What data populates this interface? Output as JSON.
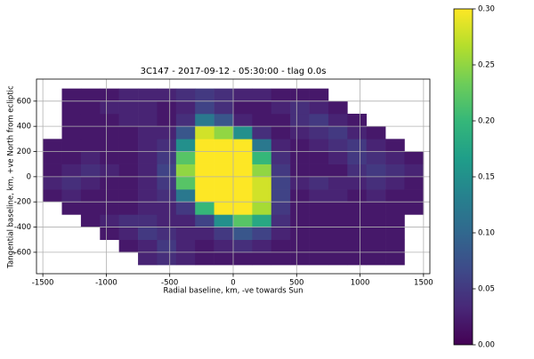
{
  "chart_data": {
    "type": "heatmap",
    "title": "3C147 - 2017-09-12 - 05:30:00 - tlag 0.0s",
    "xlabel": "Radial baseline, km, -ve towards Sun",
    "ylabel": "Tangential baseline, km, +ve North from ecliptic",
    "colormap": "viridis",
    "grid": true,
    "xlim": [
      -1550,
      1550
    ],
    "ylim": [
      -770,
      775
    ],
    "xticks": [
      -1500,
      -1000,
      -500,
      0,
      500,
      1000,
      1500
    ],
    "yticks": [
      -600,
      -400,
      -200,
      0,
      200,
      400,
      600
    ],
    "clim": [
      0,
      0.3
    ],
    "cticks": [
      {
        "value": 0,
        "label": "0.00"
      },
      {
        "value": 0.05,
        "label": "0.05"
      },
      {
        "value": 0.1,
        "label": "0.10"
      },
      {
        "value": 0.15,
        "label": "0.15"
      },
      {
        "value": 0.2,
        "label": "0.20"
      },
      {
        "value": 0.25,
        "label": "0.25"
      },
      {
        "value": 0.3,
        "label": "0.30"
      }
    ],
    "xbins": [
      -1500,
      -1350,
      -1200,
      -1050,
      -900,
      -750,
      -600,
      -450,
      -300,
      -150,
      0,
      150,
      300,
      450,
      600,
      750,
      900,
      1050,
      1200,
      1350,
      1500
    ],
    "ybins": [
      -700,
      -600,
      -500,
      -400,
      -300,
      -200,
      -100,
      0,
      100,
      200,
      300,
      400,
      500,
      600,
      700
    ],
    "values": [
      [
        null,
        null,
        null,
        null,
        null,
        0.03,
        0.04,
        0.03,
        0.02,
        0.02,
        0.02,
        0.02,
        0.02,
        0.02,
        0.02,
        0.02,
        0.02,
        0.02,
        0.02,
        null
      ],
      [
        null,
        null,
        null,
        null,
        0.02,
        0.03,
        0.05,
        0.03,
        0.02,
        0.03,
        0.04,
        0.03,
        0.02,
        0.02,
        0.02,
        0.02,
        0.02,
        0.02,
        0.02,
        null
      ],
      [
        null,
        null,
        null,
        0.02,
        0.03,
        0.05,
        0.04,
        0.03,
        0.03,
        0.05,
        0.08,
        0.06,
        0.03,
        0.02,
        0.02,
        0.02,
        0.02,
        0.02,
        0.02,
        null
      ],
      [
        null,
        null,
        0.02,
        0.03,
        0.04,
        0.04,
        0.03,
        0.03,
        0.06,
        0.15,
        0.22,
        0.18,
        0.04,
        0.02,
        0.02,
        0.02,
        0.02,
        0.02,
        0.02,
        null
      ],
      [
        null,
        0.02,
        0.02,
        0.02,
        0.02,
        0.03,
        0.03,
        0.05,
        0.2,
        0.3,
        0.3,
        0.26,
        0.05,
        0.02,
        0.02,
        0.02,
        0.02,
        0.02,
        0.02,
        0.02
      ],
      [
        0.02,
        0.03,
        0.02,
        0.02,
        0.02,
        0.03,
        0.04,
        0.12,
        0.3,
        0.3,
        0.3,
        0.28,
        0.06,
        0.02,
        0.03,
        0.03,
        0.02,
        0.03,
        0.02,
        0.02
      ],
      [
        0.03,
        0.04,
        0.03,
        0.02,
        0.02,
        0.03,
        0.05,
        0.22,
        0.3,
        0.3,
        0.3,
        0.28,
        0.06,
        0.03,
        0.04,
        0.03,
        0.03,
        0.04,
        0.03,
        0.02
      ],
      [
        0.02,
        0.03,
        0.04,
        0.03,
        0.02,
        0.03,
        0.06,
        0.25,
        0.3,
        0.3,
        0.3,
        0.25,
        0.05,
        0.02,
        0.02,
        0.02,
        0.04,
        0.05,
        0.04,
        0.03
      ],
      [
        0.02,
        0.02,
        0.03,
        0.02,
        0.02,
        0.03,
        0.05,
        0.22,
        0.3,
        0.3,
        0.3,
        0.2,
        0.04,
        0.02,
        0.02,
        0.03,
        0.05,
        0.04,
        0.03,
        0.02
      ],
      [
        0.02,
        0.02,
        0.02,
        0.02,
        0.02,
        0.03,
        0.04,
        0.15,
        0.3,
        0.3,
        0.3,
        0.12,
        0.03,
        0.02,
        0.03,
        0.04,
        0.05,
        0.03,
        0.02,
        null
      ],
      [
        null,
        0.02,
        0.02,
        0.02,
        0.02,
        0.03,
        0.03,
        0.08,
        0.28,
        0.25,
        0.15,
        0.04,
        0.02,
        0.03,
        0.04,
        0.05,
        0.03,
        0.02,
        null,
        null
      ],
      [
        null,
        0.02,
        0.02,
        0.02,
        0.03,
        0.03,
        0.02,
        0.04,
        0.12,
        0.08,
        0.03,
        0.02,
        0.02,
        0.04,
        0.05,
        0.03,
        0.02,
        null,
        null,
        null
      ],
      [
        null,
        0.02,
        0.02,
        0.03,
        0.03,
        0.03,
        0.02,
        0.03,
        0.06,
        0.04,
        0.02,
        0.02,
        0.03,
        0.04,
        0.03,
        0.02,
        null,
        null,
        null,
        null
      ],
      [
        null,
        0.02,
        0.02,
        0.02,
        0.03,
        0.03,
        0.03,
        0.04,
        0.05,
        0.04,
        0.03,
        0.03,
        0.02,
        0.02,
        0.02,
        null,
        null,
        null,
        null,
        null
      ]
    ]
  }
}
